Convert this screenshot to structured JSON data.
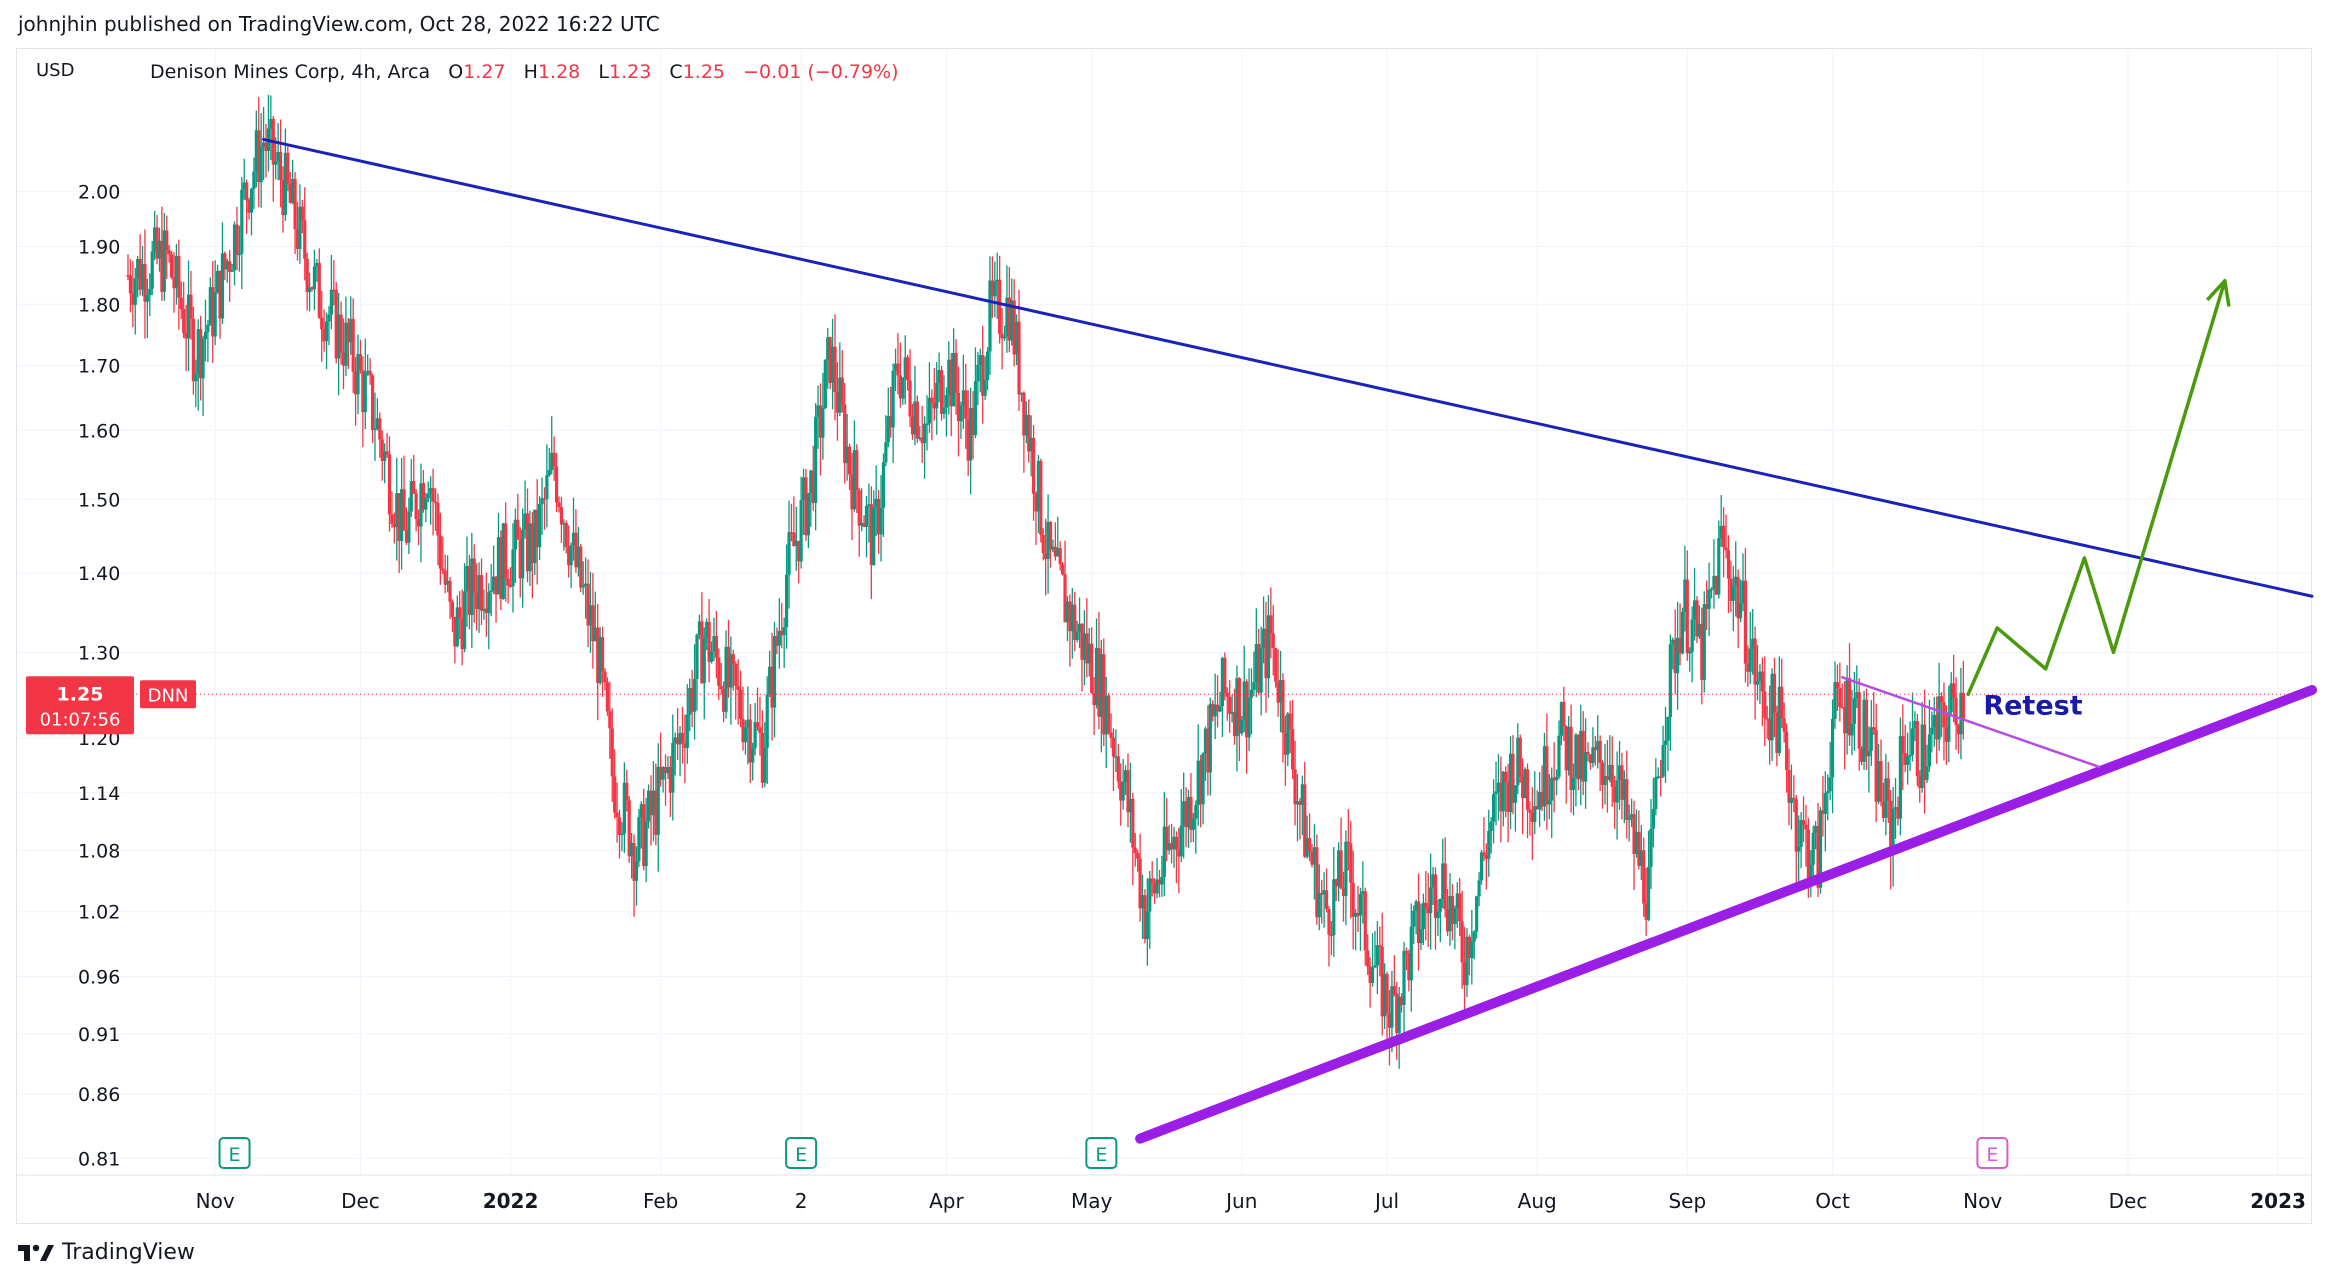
{
  "publisher": "johnjhin published on TradingView.com, Oct 28, 2022 16:22 UTC",
  "currency": "USD",
  "legend": {
    "symbol_desc": "Denison Mines Corp, 4h, Arca",
    "open_label": "O",
    "open": "1.27",
    "high_label": "H",
    "high": "1.28",
    "low_label": "L",
    "low": "1.23",
    "close_label": "C",
    "close": "1.25",
    "change": "−0.01 (−0.79%)"
  },
  "price_tag": {
    "price": "1.25",
    "countdown": "01:07:56",
    "ticker": "DNN"
  },
  "annotation_text": "Retest",
  "earnings_marker_label": "E",
  "footer_brand": "TradingView",
  "colors": {
    "up": "#089981",
    "down": "#f23645",
    "downtrend": "#1a23b8",
    "uptrend": "#9b1ee6",
    "retest_line": "#b44ce6",
    "projection": "#4a9a0e",
    "annotation": "#1a1aa6",
    "earnings": "#089981",
    "earnings_future": "#d85cc9"
  },
  "chart_data": {
    "type": "candlestick",
    "symbol": "DNN",
    "interval": "4h",
    "y_scale": "log",
    "ylim": [
      0.79,
      2.22
    ],
    "y_ticks": [
      "2.00",
      "1.90",
      "1.80",
      "1.70",
      "1.60",
      "1.50",
      "1.40",
      "1.30",
      "1.20",
      "1.14",
      "1.08",
      "1.02",
      "0.96",
      "0.91",
      "0.86",
      "0.81"
    ],
    "x_ticks": [
      {
        "label": "Nov",
        "date": "2021-11-01"
      },
      {
        "label": "Dec",
        "date": "2021-12-01"
      },
      {
        "label": "2022",
        "date": "2022-01-01",
        "bold": true
      },
      {
        "label": "Feb",
        "date": "2022-02-01"
      },
      {
        "label": "2",
        "date": "2022-03-02"
      },
      {
        "label": "Apr",
        "date": "2022-04-01"
      },
      {
        "label": "May",
        "date": "2022-05-01"
      },
      {
        "label": "Jun",
        "date": "2022-06-01"
      },
      {
        "label": "Jul",
        "date": "2022-07-01"
      },
      {
        "label": "Aug",
        "date": "2022-08-01"
      },
      {
        "label": "Sep",
        "date": "2022-09-01"
      },
      {
        "label": "Oct",
        "date": "2022-10-01"
      },
      {
        "label": "Nov",
        "date": "2022-11-01"
      },
      {
        "label": "Dec",
        "date": "2022-12-01"
      },
      {
        "label": "2023",
        "date": "2023-01-01",
        "bold": true
      }
    ],
    "xlim": [
      "2021-10-14",
      "2023-01-08"
    ],
    "price_path": [
      [
        "2021-10-14",
        1.85
      ],
      [
        "2021-10-22",
        1.88
      ],
      [
        "2021-10-28",
        1.72
      ],
      [
        "2021-11-01",
        1.8
      ],
      [
        "2021-11-08",
        2.02
      ],
      [
        "2021-11-11",
        2.1
      ],
      [
        "2021-11-15",
        2.02
      ],
      [
        "2021-11-22",
        1.82
      ],
      [
        "2021-11-29",
        1.72
      ],
      [
        "2021-12-04",
        1.62
      ],
      [
        "2021-12-10",
        1.45
      ],
      [
        "2021-12-15",
        1.55
      ],
      [
        "2021-12-20",
        1.32
      ],
      [
        "2021-12-24",
        1.38
      ],
      [
        "2021-12-31",
        1.42
      ],
      [
        "2022-01-06",
        1.44
      ],
      [
        "2022-01-10",
        1.55
      ],
      [
        "2022-01-14",
        1.42
      ],
      [
        "2022-01-19",
        1.3
      ],
      [
        "2022-01-22",
        1.16
      ],
      [
        "2022-01-27",
        1.08
      ],
      [
        "2022-02-01",
        1.14
      ],
      [
        "2022-02-05",
        1.2
      ],
      [
        "2022-02-10",
        1.32
      ],
      [
        "2022-02-15",
        1.26
      ],
      [
        "2022-02-22",
        1.19
      ],
      [
        "2022-02-27",
        1.4
      ],
      [
        "2022-03-04",
        1.52
      ],
      [
        "2022-03-08",
        1.72
      ],
      [
        "2022-03-12",
        1.55
      ],
      [
        "2022-03-17",
        1.44
      ],
      [
        "2022-03-22",
        1.7
      ],
      [
        "2022-03-28",
        1.6
      ],
      [
        "2022-04-01",
        1.7
      ],
      [
        "2022-04-06",
        1.6
      ],
      [
        "2022-04-10",
        1.78
      ],
      [
        "2022-04-14",
        1.8
      ],
      [
        "2022-04-19",
        1.55
      ],
      [
        "2022-04-22",
        1.42
      ],
      [
        "2022-04-27",
        1.34
      ],
      [
        "2022-05-03",
        1.26
      ],
      [
        "2022-05-08",
        1.14
      ],
      [
        "2022-05-12",
        1.02
      ],
      [
        "2022-05-17",
        1.08
      ],
      [
        "2022-05-22",
        1.14
      ],
      [
        "2022-05-28",
        1.25
      ],
      [
        "2022-06-02",
        1.24
      ],
      [
        "2022-06-07",
        1.32
      ],
      [
        "2022-06-10",
        1.22
      ],
      [
        "2022-06-14",
        1.1
      ],
      [
        "2022-06-18",
        1.02
      ],
      [
        "2022-06-23",
        1.06
      ],
      [
        "2022-06-29",
        0.96
      ],
      [
        "2022-07-02",
        0.93
      ],
      [
        "2022-07-07",
        1.0
      ],
      [
        "2022-07-12",
        1.06
      ],
      [
        "2022-07-17",
        0.98
      ],
      [
        "2022-07-22",
        1.1
      ],
      [
        "2022-07-27",
        1.17
      ],
      [
        "2022-08-01",
        1.14
      ],
      [
        "2022-08-06",
        1.2
      ],
      [
        "2022-08-11",
        1.16
      ],
      [
        "2022-08-16",
        1.18
      ],
      [
        "2022-08-20",
        1.1
      ],
      [
        "2022-08-24",
        1.04
      ],
      [
        "2022-08-27",
        1.22
      ],
      [
        "2022-08-31",
        1.36
      ],
      [
        "2022-09-04",
        1.3
      ],
      [
        "2022-09-08",
        1.44
      ],
      [
        "2022-09-12",
        1.36
      ],
      [
        "2022-09-16",
        1.25
      ],
      [
        "2022-09-20",
        1.22
      ],
      [
        "2022-09-24",
        1.1
      ],
      [
        "2022-09-28",
        1.07
      ],
      [
        "2022-10-01",
        1.22
      ],
      [
        "2022-10-05",
        1.25
      ],
      [
        "2022-10-09",
        1.18
      ],
      [
        "2022-10-13",
        1.1
      ],
      [
        "2022-10-16",
        1.2
      ],
      [
        "2022-10-20",
        1.18
      ],
      [
        "2022-10-24",
        1.22
      ],
      [
        "2022-10-28",
        1.25
      ]
    ],
    "drawings": {
      "downtrend_line": [
        [
          "2021-11-11",
          2.1
        ],
        [
          "2023-01-08",
          1.37
        ]
      ],
      "uptrend_line": [
        [
          "2022-05-11",
          0.825
        ],
        [
          "2023-01-08",
          1.255
        ]
      ],
      "retest_line": [
        [
          "2022-10-03",
          1.27
        ],
        [
          "2022-11-25",
          1.168
        ]
      ],
      "projection_path": [
        [
          "2022-10-29",
          1.25
        ],
        [
          "2022-11-04",
          1.33
        ],
        [
          "2022-11-14",
          1.28
        ],
        [
          "2022-11-22",
          1.42
        ],
        [
          "2022-11-28",
          1.3
        ],
        [
          "2022-12-21",
          1.84
        ]
      ],
      "earnings_markers": [
        {
          "date": "2021-11-05",
          "future": false
        },
        {
          "date": "2022-03-02",
          "future": false
        },
        {
          "date": "2022-05-03",
          "future": false
        },
        {
          "date": "2022-11-03",
          "future": true
        }
      ],
      "retest_label_anchor": [
        "2022-10-28",
        1.236
      ]
    }
  }
}
